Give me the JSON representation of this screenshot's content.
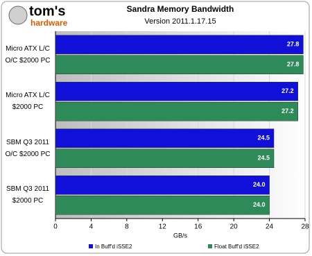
{
  "chart_data": {
    "type": "hbar",
    "logo_text": [
      "tom's",
      "hardware"
    ],
    "title": "Sandra Memory Bandwidth",
    "subtitle": "Version 2011.1.17.15",
    "x_label": "GB/s",
    "categories": [
      "Micro ATX L/C\nO/C $2000 PC",
      "Micro ATX L/C\n$2000 PC",
      "SBM Q3 2011\nO/C $2000 PC",
      "SBM Q3 2011\n$2000 PC"
    ],
    "series": [
      {
        "name": "In Buff'd iSSE2",
        "color": "#1010d8",
        "values": [
          27.8,
          27.2,
          24.5,
          24.0
        ],
        "value_labels": [
          "27.8",
          "27.2",
          "24.5",
          "24.0"
        ]
      },
      {
        "name": "Float Buff'd iSSE2",
        "color": "#2e8a58",
        "values": [
          27.8,
          27.2,
          24.5,
          24.0
        ],
        "value_labels": [
          "27.8",
          "27.2",
          "24.5",
          "24.0"
        ]
      }
    ],
    "xlim": [
      0,
      28
    ],
    "xticks": [
      0,
      4,
      8,
      12,
      16,
      20,
      24,
      28
    ],
    "grid": true
  }
}
